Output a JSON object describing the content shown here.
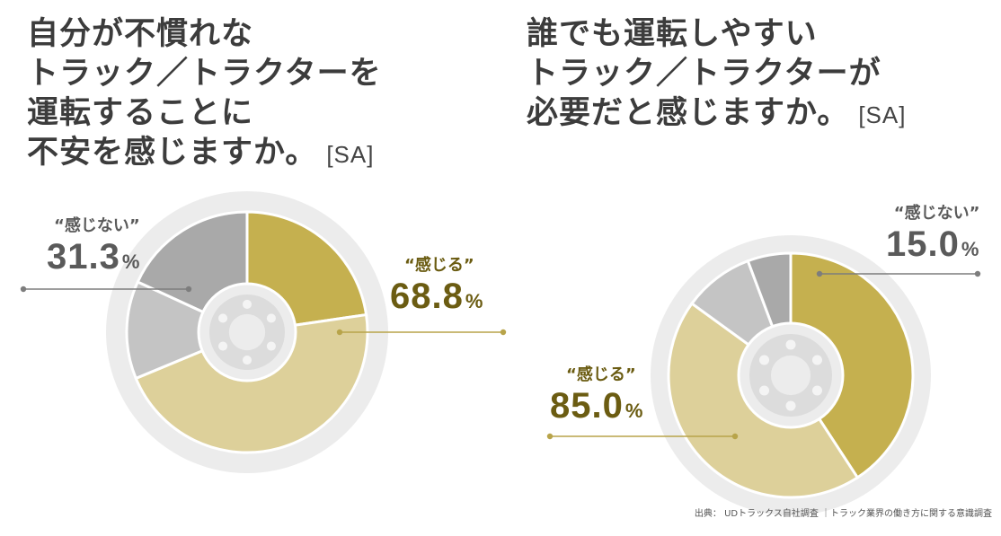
{
  "left": {
    "title_lines": [
      "自分が不慣れな",
      "トラック／トラクターを",
      "運転することに",
      "不安を感じますか。"
    ],
    "tag": "[SA]"
  },
  "right": {
    "title_lines": [
      "誰でも運転しやすい",
      "トラック／トラクターが",
      "必要だと感じますか。"
    ],
    "tag": "[SA]"
  },
  "chart_data": [
    {
      "type": "pie",
      "labels": [
        "“感じる”",
        "“感じない”"
      ],
      "values": [
        68.8,
        31.3
      ],
      "value_text": [
        "68.8",
        "31.3"
      ],
      "unit": "%",
      "colors": [
        "#c5b04f",
        "#a9a9a9"
      ]
    },
    {
      "type": "pie",
      "labels": [
        "“感じる”",
        "“感じない”"
      ],
      "values": [
        85.0,
        15.0
      ],
      "value_text": [
        "85.0",
        "15.0"
      ],
      "unit": "%",
      "colors": [
        "#c5b04f",
        "#a9a9a9"
      ]
    }
  ],
  "source": "出典： UDトラックス自社調査 ｜トラック業界の働き方に関する意識調査"
}
